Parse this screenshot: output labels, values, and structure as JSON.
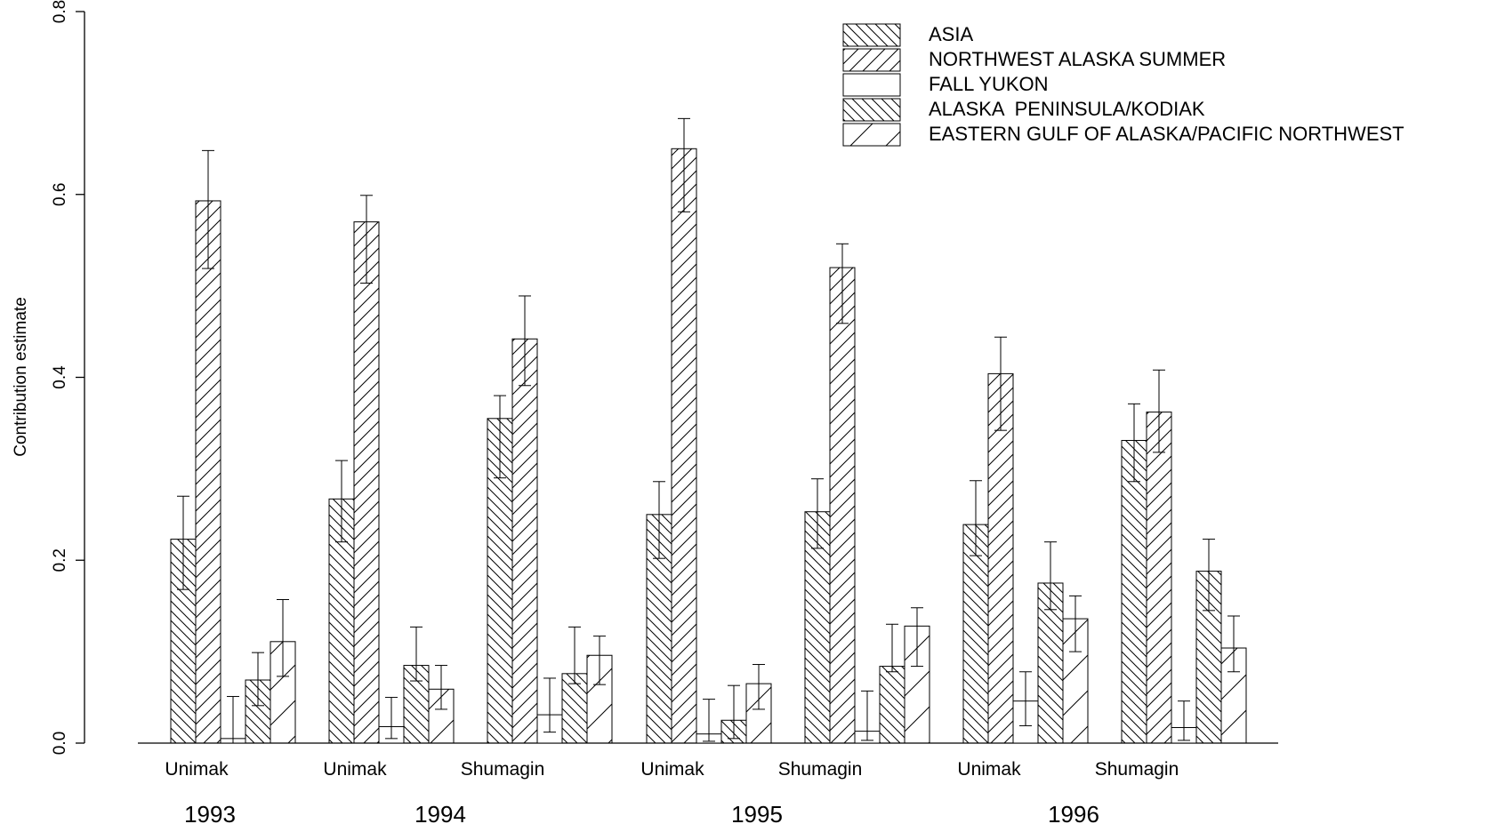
{
  "chart_data": {
    "type": "bar",
    "ylabel": "Contribution estimate",
    "ylim": [
      0,
      0.8
    ],
    "yticks": [
      "0.0",
      "0.2",
      "0.4",
      "0.6",
      "0.8"
    ],
    "grid": false,
    "legend_position": "top-right",
    "group_labels": [
      "Unimak",
      "Unimak",
      "Shumagin",
      "Unimak",
      "Shumagin",
      "Unimak",
      "Shumagin"
    ],
    "year_labels": [
      "1993",
      "1994",
      "1995",
      "1996"
    ],
    "series": [
      {
        "name": "ASIA",
        "pattern": "back",
        "values": [
          0.223,
          0.267,
          0.355,
          0.25,
          0.253,
          0.239,
          0.331
        ],
        "lo": [
          0.168,
          0.22,
          0.29,
          0.202,
          0.213,
          0.205,
          0.286
        ],
        "hi": [
          0.27,
          0.309,
          0.38,
          0.286,
          0.289,
          0.287,
          0.371
        ]
      },
      {
        "name": "NORTHWEST ALASKA SUMMER",
        "pattern": "forward",
        "values": [
          0.593,
          0.57,
          0.442,
          0.65,
          0.52,
          0.404,
          0.362
        ],
        "lo": [
          0.519,
          0.503,
          0.391,
          0.581,
          0.459,
          0.342,
          0.318
        ],
        "hi": [
          0.648,
          0.599,
          0.489,
          0.683,
          0.546,
          0.444,
          0.408
        ]
      },
      {
        "name": "FALL YUKON",
        "pattern": "none",
        "values": [
          0.005,
          0.018,
          0.031,
          0.01,
          0.013,
          0.046,
          0.017
        ],
        "lo": [
          0.0,
          0.005,
          0.012,
          0.002,
          0.003,
          0.019,
          0.003
        ],
        "hi": [
          0.051,
          0.05,
          0.071,
          0.048,
          0.057,
          0.078,
          0.046
        ]
      },
      {
        "name": "ALASKA  PENINSULA/KODIAK",
        "pattern": "back",
        "values": [
          0.069,
          0.085,
          0.076,
          0.025,
          0.084,
          0.175,
          0.188
        ],
        "lo": [
          0.041,
          0.068,
          0.065,
          0.005,
          0.078,
          0.146,
          0.145
        ],
        "hi": [
          0.099,
          0.127,
          0.127,
          0.063,
          0.13,
          0.22,
          0.223
        ]
      },
      {
        "name": "EASTERN GULF OF ALASKA/PACIFIC NORTHWEST",
        "pattern": "sparse",
        "values": [
          0.111,
          0.059,
          0.096,
          0.065,
          0.128,
          0.136,
          0.104
        ],
        "lo": [
          0.073,
          0.037,
          0.064,
          0.037,
          0.084,
          0.1,
          0.078
        ],
        "hi": [
          0.157,
          0.085,
          0.117,
          0.086,
          0.148,
          0.161,
          0.139
        ]
      }
    ]
  }
}
